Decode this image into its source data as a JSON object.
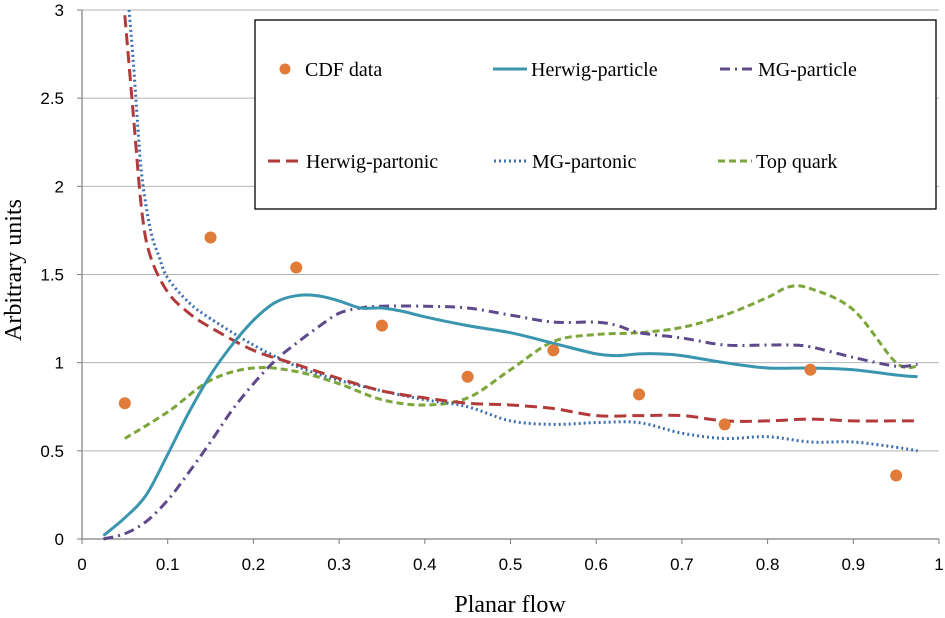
{
  "chart_data": {
    "type": "line",
    "title": "",
    "xlabel": "Planar flow",
    "ylabel": "Arbitrary units",
    "xlim": [
      0,
      1
    ],
    "ylim": [
      0,
      3
    ],
    "xticks": [
      "0",
      "0.1",
      "0.2",
      "0.3",
      "0.4",
      "0.5",
      "0.6",
      "0.7",
      "0.8",
      "0.9",
      "1"
    ],
    "yticks": [
      "0",
      "0.5",
      "1",
      "1.5",
      "2",
      "2.5",
      "3"
    ],
    "grid": "horizontal",
    "legend_position": "top-right",
    "series": [
      {
        "name": "CDF data",
        "kind": "points",
        "color": "#E07B39",
        "x": [
          0.05,
          0.15,
          0.25,
          0.35,
          0.45,
          0.55,
          0.65,
          0.75,
          0.85,
          0.95
        ],
        "y": [
          0.77,
          1.71,
          1.54,
          1.21,
          0.92,
          1.07,
          0.82,
          0.65,
          0.96,
          0.36
        ]
      },
      {
        "name": "Herwig-particle",
        "kind": "line",
        "dash": "solid",
        "color": "#3A95AE",
        "x": [
          0.025,
          0.05,
          0.075,
          0.1,
          0.125,
          0.15,
          0.175,
          0.2,
          0.225,
          0.25,
          0.275,
          0.3,
          0.325,
          0.35,
          0.375,
          0.4,
          0.45,
          0.5,
          0.55,
          0.6,
          0.625,
          0.65,
          0.675,
          0.7,
          0.75,
          0.8,
          0.85,
          0.9,
          0.95,
          0.975
        ],
        "y": [
          0.02,
          0.12,
          0.25,
          0.48,
          0.72,
          0.93,
          1.1,
          1.24,
          1.34,
          1.38,
          1.38,
          1.35,
          1.31,
          1.31,
          1.29,
          1.26,
          1.21,
          1.17,
          1.11,
          1.05,
          1.04,
          1.05,
          1.05,
          1.04,
          1.0,
          0.97,
          0.97,
          0.96,
          0.93,
          0.92
        ]
      },
      {
        "name": "MG-particle",
        "kind": "line",
        "dash": "dashdot",
        "color": "#5E4A8B",
        "x": [
          0.025,
          0.05,
          0.075,
          0.1,
          0.125,
          0.15,
          0.175,
          0.2,
          0.225,
          0.25,
          0.275,
          0.3,
          0.325,
          0.35,
          0.4,
          0.45,
          0.5,
          0.55,
          0.6,
          0.625,
          0.65,
          0.7,
          0.75,
          0.8,
          0.825,
          0.85,
          0.9,
          0.95,
          0.975
        ],
        "y": [
          0.0,
          0.03,
          0.1,
          0.22,
          0.38,
          0.55,
          0.73,
          0.88,
          1.01,
          1.11,
          1.2,
          1.28,
          1.31,
          1.32,
          1.32,
          1.31,
          1.27,
          1.23,
          1.23,
          1.21,
          1.17,
          1.14,
          1.1,
          1.1,
          1.1,
          1.09,
          1.03,
          0.98,
          0.99
        ]
      },
      {
        "name": "Herwig-partonic",
        "kind": "line",
        "dash": "dashed",
        "color": "#B33A3A",
        "x": [
          0.05,
          0.06,
          0.07,
          0.08,
          0.1,
          0.125,
          0.15,
          0.2,
          0.25,
          0.3,
          0.35,
          0.4,
          0.45,
          0.5,
          0.55,
          0.6,
          0.65,
          0.7,
          0.75,
          0.8,
          0.85,
          0.9,
          0.95,
          0.975
        ],
        "y": [
          2.97,
          2.4,
          1.85,
          1.6,
          1.4,
          1.28,
          1.2,
          1.07,
          0.99,
          0.91,
          0.84,
          0.8,
          0.77,
          0.76,
          0.74,
          0.7,
          0.7,
          0.7,
          0.67,
          0.67,
          0.68,
          0.67,
          0.67,
          0.67
        ]
      },
      {
        "name": "MG-partonic",
        "kind": "line",
        "dash": "dotted",
        "color": "#3C6FB0",
        "x": [
          0.055,
          0.06,
          0.065,
          0.07,
          0.08,
          0.09,
          0.1,
          0.125,
          0.15,
          0.2,
          0.25,
          0.3,
          0.35,
          0.4,
          0.45,
          0.5,
          0.55,
          0.6,
          0.65,
          0.7,
          0.75,
          0.8,
          0.85,
          0.9,
          0.95,
          0.975
        ],
        "y": [
          3.0,
          2.7,
          2.35,
          2.05,
          1.75,
          1.6,
          1.48,
          1.34,
          1.25,
          1.1,
          0.98,
          0.9,
          0.84,
          0.79,
          0.75,
          0.67,
          0.65,
          0.66,
          0.66,
          0.6,
          0.57,
          0.58,
          0.55,
          0.55,
          0.52,
          0.5
        ]
      },
      {
        "name": "Top quark",
        "kind": "line",
        "dash": "dashed",
        "color": "#7DA63A",
        "x": [
          0.05,
          0.1,
          0.15,
          0.2,
          0.25,
          0.3,
          0.35,
          0.4,
          0.45,
          0.5,
          0.55,
          0.6,
          0.65,
          0.7,
          0.75,
          0.8,
          0.825,
          0.85,
          0.9,
          0.95,
          0.975
        ],
        "y": [
          0.57,
          0.72,
          0.9,
          0.97,
          0.95,
          0.88,
          0.79,
          0.76,
          0.8,
          0.96,
          1.12,
          1.16,
          1.17,
          1.2,
          1.27,
          1.37,
          1.43,
          1.42,
          1.3,
          1.0,
          0.98
        ]
      }
    ]
  }
}
